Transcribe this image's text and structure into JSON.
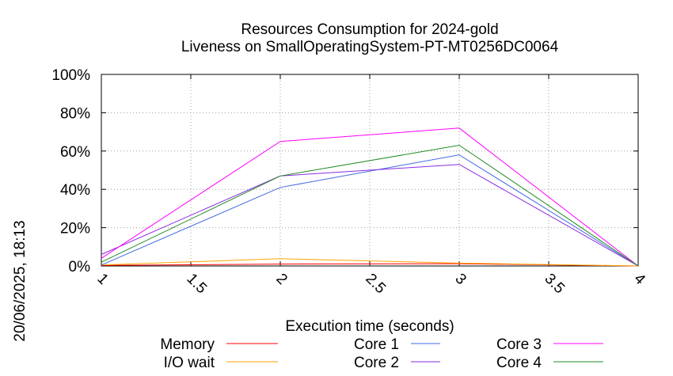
{
  "chart_data": {
    "type": "line",
    "title": "Resources Consumption for 2024-gold",
    "subtitle": "Liveness on SmallOperatingSystem-PT-MT0256DC0064",
    "xlabel": "Execution time (seconds)",
    "ylabel": "",
    "side_label": "20/06/2025, 18:13",
    "xlim": [
      1,
      4
    ],
    "ylim": [
      0,
      100
    ],
    "x_ticks": [
      1,
      1.5,
      2,
      2.5,
      3,
      3.5,
      4
    ],
    "x_tick_labels": [
      "1",
      "1.5",
      "2",
      "2.5",
      "3",
      "3.5",
      "4"
    ],
    "y_ticks": [
      0,
      20,
      40,
      60,
      80,
      100
    ],
    "y_tick_labels": [
      "0%",
      "20%",
      "40%",
      "60%",
      "80%",
      "100%"
    ],
    "grid": true,
    "legend_position": "bottom",
    "series": [
      {
        "name": "Memory",
        "color": "#ff0000",
        "x": [
          1,
          2,
          3,
          4
        ],
        "values": [
          0.3,
          1.0,
          1.2,
          0.0
        ]
      },
      {
        "name": "I/O wait",
        "color": "#ffa500",
        "x": [
          1,
          2,
          3,
          4
        ],
        "values": [
          0.5,
          3.8,
          1.5,
          0.0
        ]
      },
      {
        "name": "Core 1",
        "color": "#4169e1",
        "x": [
          1,
          2,
          3,
          4
        ],
        "values": [
          0.5,
          41,
          58,
          0.0
        ]
      },
      {
        "name": "Core 2",
        "color": "#8a2be2",
        "x": [
          1,
          2,
          3,
          4
        ],
        "values": [
          6,
          47,
          53,
          0.0
        ]
      },
      {
        "name": "Core 3",
        "color": "#ff00ff",
        "x": [
          1,
          2,
          3,
          4
        ],
        "values": [
          4,
          65,
          72,
          0.0
        ]
      },
      {
        "name": "Core 4",
        "color": "#228b22",
        "x": [
          1,
          2,
          3,
          4
        ],
        "values": [
          2,
          47,
          63,
          0.0
        ]
      }
    ]
  }
}
